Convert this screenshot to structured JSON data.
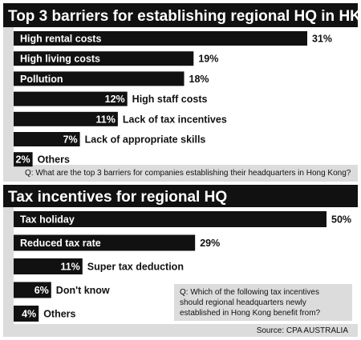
{
  "colors": {
    "bar": "#111111",
    "header": "#111111",
    "panel": "#dcdcdc",
    "background": "#ffffff"
  },
  "chart_data": [
    {
      "type": "bar",
      "orientation": "horizontal",
      "title": "Top 3 barriers for establishing regional HQ in HK",
      "categories": [
        "High rental costs",
        "High living costs",
        "Pollution",
        "High staff costs",
        "Lack of tax incentives",
        "Lack of appropriate skills",
        "Others"
      ],
      "values": [
        31,
        19,
        18,
        12,
        11,
        7,
        2
      ],
      "value_labels": [
        "31%",
        "19%",
        "18%",
        "12%",
        "11%",
        "7%",
        "2%"
      ],
      "xlim": [
        0,
        31
      ],
      "grid": false,
      "legend": "none",
      "note": "Q: What are the top 3 barriers for companies establishing their headquarters in Hong Kong?"
    },
    {
      "type": "bar",
      "orientation": "horizontal",
      "title": "Tax incentives for regional HQ",
      "categories": [
        "Tax holiday",
        "Reduced tax rate",
        "Super tax deduction",
        "Don't know",
        "Others"
      ],
      "values": [
        50,
        29,
        11,
        6,
        4
      ],
      "value_labels": [
        "50%",
        "29%",
        "11%",
        "6%",
        "4%"
      ],
      "xlim": [
        0,
        50
      ],
      "grid": false,
      "legend": "none",
      "note_lines": [
        "Q: Which of the following tax incentives",
        "should regional headquarters newly",
        "established in Hong Kong benefit from?"
      ],
      "source": "Source: CPA AUSTRALIA"
    }
  ]
}
